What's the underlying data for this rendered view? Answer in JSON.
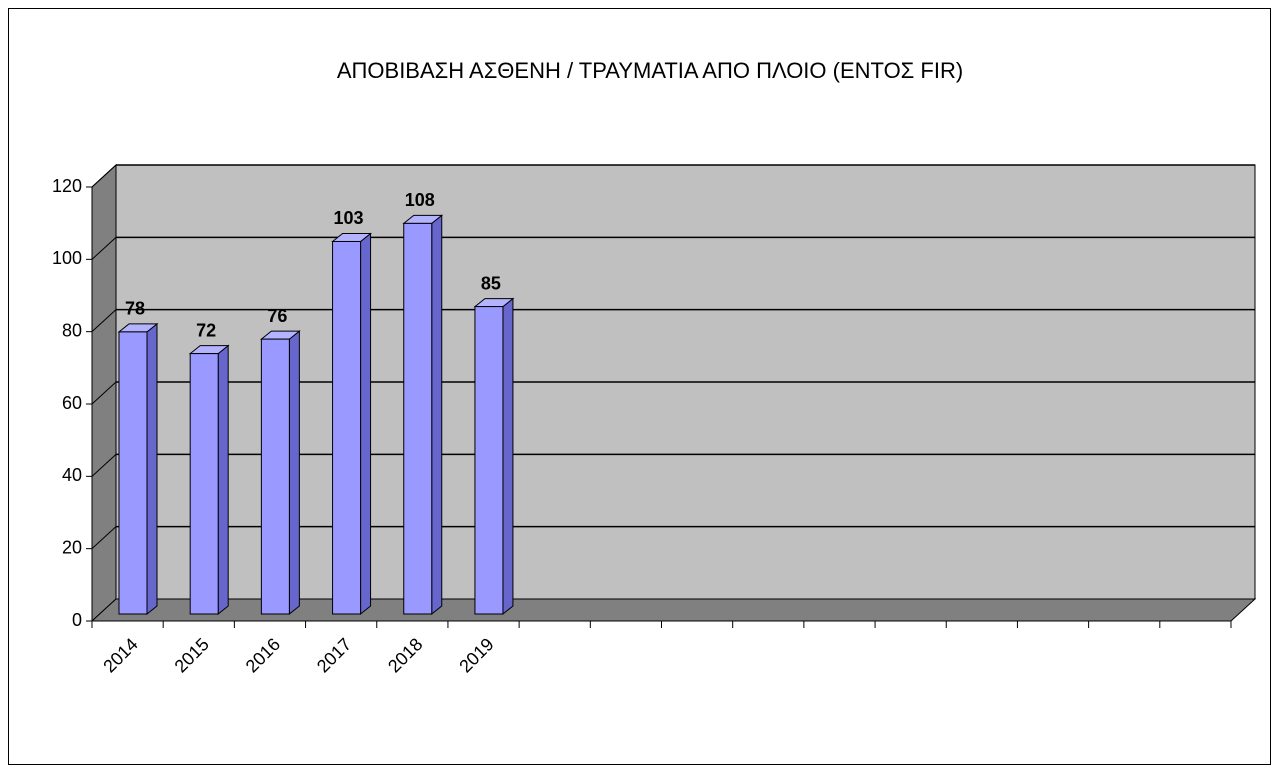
{
  "chart_data": {
    "type": "bar3d",
    "title": "ΑΠΟΒΙΒΑΣΗ ΑΣΘΕΝΗ / ΤΡΑΥΜΑΤΙΑ ΑΠΟ ΠΛΟΙΟ (ΕΝΤΟΣ FIR)",
    "categories": [
      "2014",
      "2015",
      "2016",
      "2017",
      "2018",
      "2019",
      null,
      null,
      null,
      null,
      null,
      null,
      null,
      null,
      null,
      null
    ],
    "values": [
      78,
      72,
      76,
      103,
      108,
      85,
      null,
      null,
      null,
      null,
      null,
      null,
      null,
      null,
      null,
      null
    ],
    "color": "#9999ff",
    "ylim": [
      0,
      120
    ],
    "yticks": [
      0,
      20,
      40,
      60,
      80,
      100,
      120
    ],
    "grid": true
  }
}
